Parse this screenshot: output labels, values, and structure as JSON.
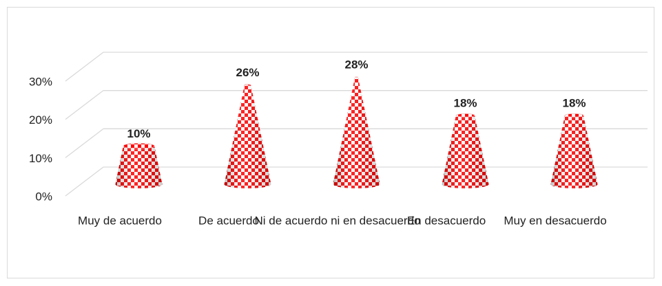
{
  "chart_data": {
    "type": "cone",
    "categories": [
      "Muy de acuerdo",
      "De acuerdo",
      "Ni de acuerdo ni en desacuerdo",
      "En desacuerdo",
      "Muy en desacuerdo"
    ],
    "values": [
      10,
      26,
      28,
      18,
      18
    ],
    "value_labels": [
      "10%",
      "26%",
      "28%",
      "18%",
      "18%"
    ],
    "color": "#ff0000",
    "ylim": [
      0,
      30
    ],
    "yticks": [
      {
        "value": 0,
        "label": "0%"
      },
      {
        "value": 10,
        "label": "10%"
      },
      {
        "value": 20,
        "label": "20%"
      },
      {
        "value": 30,
        "label": "30%"
      }
    ],
    "grid": true
  }
}
